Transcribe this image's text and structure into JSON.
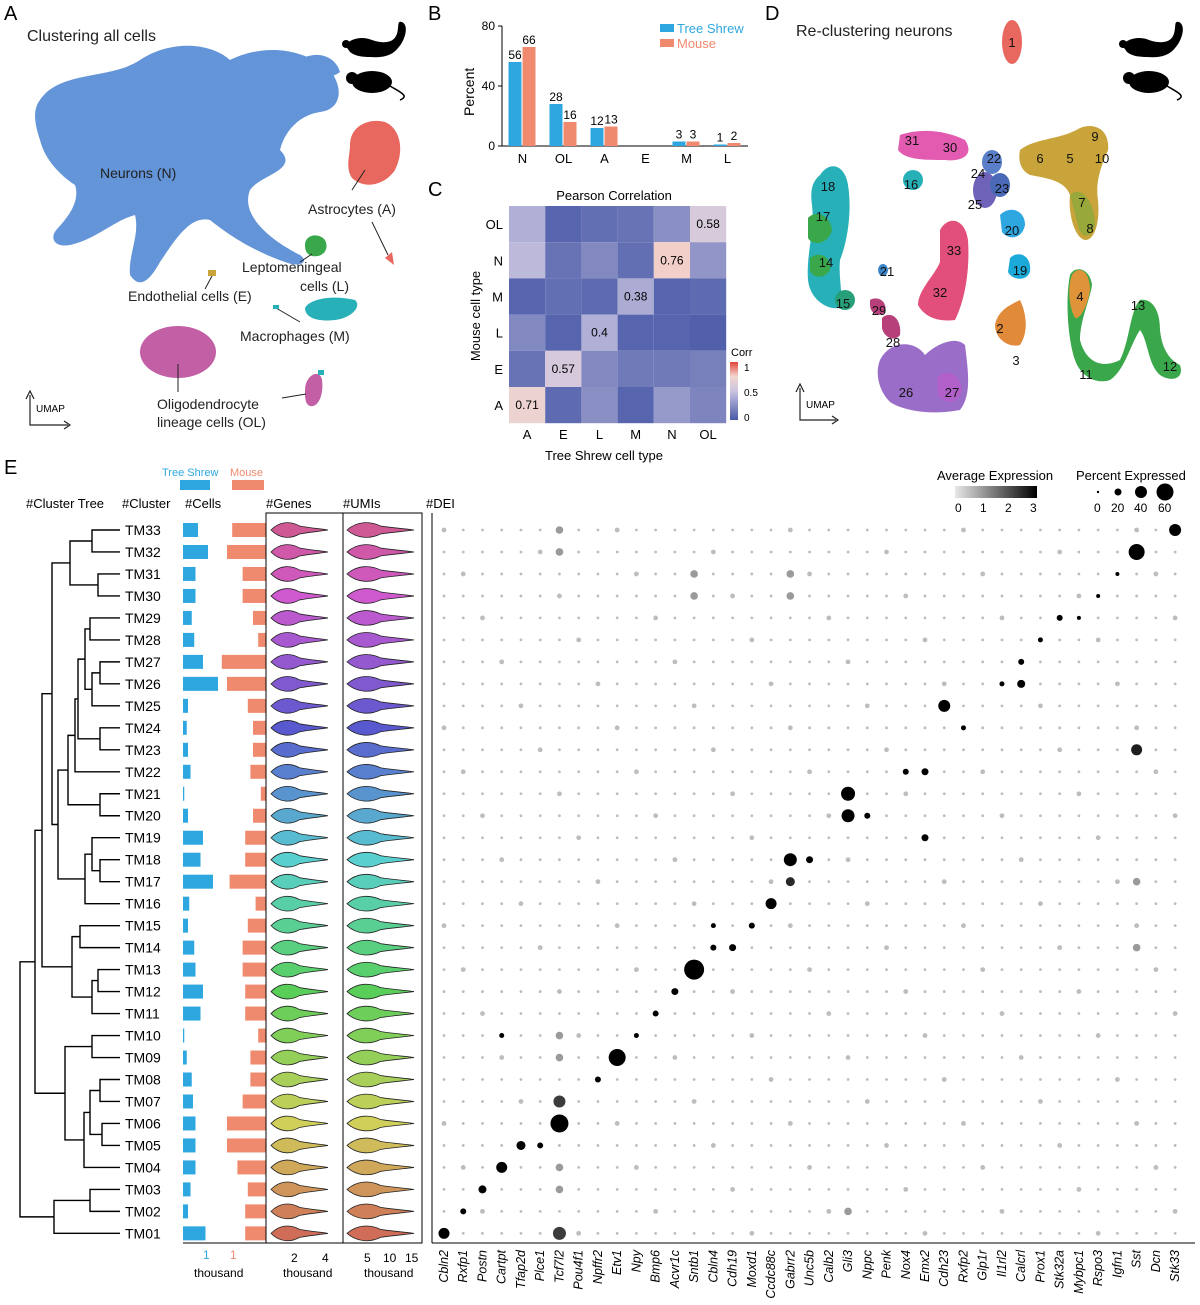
{
  "panels": {
    "a": {
      "letter": "A",
      "title": "Clustering all cells",
      "labels": {
        "neurons": "Neurons (N)",
        "astrocytes": "Astrocytes (A)",
        "lepto1": "Leptomeningeal",
        "lepto2": "cells (L)",
        "endothelial": "Endothelial cells (E)",
        "macrophages": "Macrophages (M)",
        "olig1": "Oligodendrocyte",
        "olig2": "lineage cells (OL)"
      },
      "umap_label": "UMAP"
    },
    "b": {
      "letter": "B",
      "ylabel": "Percent",
      "yticks": [
        "0",
        "40",
        "80"
      ]
    },
    "c": {
      "letter": "C",
      "title": "Pearson Correlation",
      "xlabel": "Tree Shrew cell type",
      "ylabel": "Mouse cell type",
      "colorbar_title": "Corr",
      "colorbar_ticks": [
        "1",
        "0.5",
        "0"
      ]
    },
    "d": {
      "letter": "D",
      "title": "Re-clustering neurons",
      "umap_label": "UMAP"
    },
    "e": {
      "letter": "E",
      "headers": {
        "tree": "#Cluster Tree",
        "cluster": "#Cluster",
        "cells": "#Cells",
        "genes": "#Genes",
        "umis": "#UMIs",
        "dei": "#DEI"
      },
      "legend_tree_shrew": "Tree Shrew",
      "legend_mouse": "Mouse",
      "avg_expr_title": "Average Expression",
      "avg_expr_ticks": [
        "0",
        "1",
        "2",
        "3"
      ],
      "pct_expr_title": "Percent Expressed",
      "pct_expr_ticks": [
        "0",
        "20",
        "40",
        "60"
      ],
      "cells_axis_ticks": [
        "1",
        "1"
      ],
      "cells_axis_unit": "thousand",
      "genes_axis_ticks": [
        "2",
        "4"
      ],
      "genes_axis_unit": "thousand",
      "umis_axis_ticks": [
        "5",
        "10",
        "15"
      ],
      "umis_axis_unit": "thousand"
    }
  },
  "colors": {
    "tree_shrew": "#2ea7e0",
    "mouse": "#f08a6e",
    "umap_blue": "#5b8fd6",
    "astro_red": "#e8675f",
    "lepto_green": "#3aa84a",
    "macro_teal": "#27b0b8",
    "olig_pink": "#c25fa5"
  },
  "chart_data": [
    {
      "type": "bar",
      "id": "B",
      "ylabel": "Percent",
      "ylim": [
        0,
        80
      ],
      "categories": [
        "N",
        "OL",
        "A",
        "E",
        "M",
        "L"
      ],
      "series": [
        {
          "name": "Tree Shrew",
          "values": [
            56,
            28,
            12,
            0,
            3,
            1
          ],
          "labels": [
            "56",
            "28",
            "12",
            "",
            "3",
            "1"
          ]
        },
        {
          "name": "Mouse",
          "values": [
            66,
            16,
            13,
            0,
            3,
            2
          ],
          "labels": [
            "66",
            "16",
            "13",
            "",
            "3",
            "2"
          ]
        }
      ]
    },
    {
      "type": "heatmap",
      "id": "C",
      "title": "Pearson Correlation",
      "x": [
        "A",
        "E",
        "L",
        "M",
        "N",
        "OL"
      ],
      "y": [
        "OL",
        "N",
        "M",
        "L",
        "E",
        "A"
      ],
      "values": [
        [
          0.4,
          0.05,
          0.1,
          0.12,
          0.25,
          0.58
        ],
        [
          0.45,
          0.12,
          0.22,
          0.1,
          0.76,
          0.28
        ],
        [
          0.05,
          0.1,
          0.08,
          0.38,
          0.05,
          0.08
        ],
        [
          0.22,
          0.05,
          0.4,
          0.05,
          0.05,
          0.03
        ],
        [
          0.12,
          0.57,
          0.22,
          0.15,
          0.15,
          0.18
        ],
        [
          0.71,
          0.08,
          0.25,
          0.05,
          0.3,
          0.2
        ]
      ],
      "labels": [
        [
          "",
          "",
          "",
          "",
          "",
          "0.58"
        ],
        [
          "",
          "",
          "",
          "",
          "0.76",
          ""
        ],
        [
          "",
          "",
          "",
          "0.38",
          "",
          ""
        ],
        [
          "",
          "",
          "0.4",
          "",
          "",
          ""
        ],
        [
          "",
          "0.57",
          "",
          "",
          "",
          ""
        ],
        [
          "0.71",
          "",
          "",
          "",
          "",
          ""
        ]
      ],
      "colorbar": [
        0,
        1
      ]
    },
    {
      "type": "scatter",
      "id": "D-clusters",
      "labels": [
        "1",
        "2",
        "3",
        "4",
        "5",
        "6",
        "7",
        "8",
        "9",
        "10",
        "11",
        "12",
        "13",
        "14",
        "15",
        "16",
        "17",
        "18",
        "19",
        "20",
        "21",
        "22",
        "23",
        "24",
        "25",
        "26",
        "27",
        "28",
        "29",
        "30",
        "31",
        "32",
        "33"
      ]
    },
    {
      "type": "table",
      "id": "E",
      "clusters": [
        "TM33",
        "TM32",
        "TM31",
        "TM30",
        "TM29",
        "TM28",
        "TM27",
        "TM26",
        "TM25",
        "TM24",
        "TM23",
        "TM22",
        "TM21",
        "TM20",
        "TM19",
        "TM18",
        "TM17",
        "TM16",
        "TM15",
        "TM14",
        "TM13",
        "TM12",
        "TM11",
        "TM10",
        "TM09",
        "TM08",
        "TM07",
        "TM06",
        "TM05",
        "TM04",
        "TM03",
        "TM02",
        "TM01"
      ],
      "cells_tree_shrew_thousand": [
        0.6,
        1.0,
        0.5,
        0.5,
        0.35,
        0.45,
        0.8,
        1.4,
        0.2,
        0.15,
        0.2,
        0.3,
        0.05,
        0.2,
        0.8,
        0.7,
        1.2,
        0.25,
        0.2,
        0.45,
        0.5,
        0.8,
        0.7,
        0.05,
        0.15,
        0.35,
        0.4,
        0.5,
        0.5,
        0.5,
        0.3,
        0.2,
        0.9
      ],
      "cells_mouse_thousand": [
        1.3,
        1.5,
        0.9,
        0.9,
        0.5,
        0.3,
        1.7,
        1.5,
        0.7,
        0.5,
        0.5,
        0.6,
        0.2,
        0.5,
        0.8,
        0.8,
        1.4,
        0.4,
        0.7,
        0.9,
        0.9,
        0.8,
        0.8,
        0.3,
        0.6,
        0.6,
        0.9,
        1.5,
        1.5,
        1.1,
        0.7,
        0.8,
        0.8
      ],
      "genes": [
        "Cbln2",
        "Rxfp1",
        "Postn",
        "Cartpt",
        "Tfap2d",
        "Plce1",
        "Tcf7l2",
        "Pou4f1",
        "Npffr2",
        "Etv1",
        "Npy",
        "Bmp6",
        "Acvr1c",
        "Sntb1",
        "Cbln4",
        "Cdh19",
        "Moxd1",
        "Ccdc88c",
        "Gabrr2",
        "Unc5b",
        "Calb2",
        "Gli3",
        "Nppc",
        "Penk",
        "Nox4",
        "Emx2",
        "Cdh23",
        "Rxfp2",
        "Glp1r",
        "Il1rl2",
        "Calcrl",
        "Prox1",
        "Stk32a",
        "Mybpc1",
        "Rspo3",
        "Igfn1",
        "Sst",
        "Dcn",
        "Stk33"
      ]
    }
  ]
}
